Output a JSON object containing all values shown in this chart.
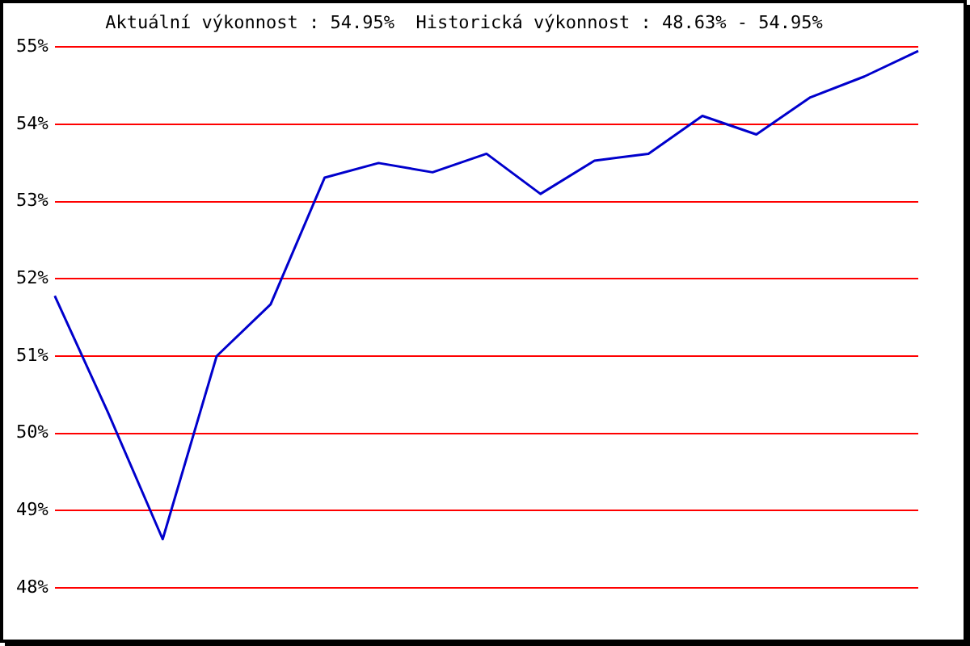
{
  "chart_data": {
    "type": "line",
    "title": "Aktuální výkonnost : 54.95%  Historická výkonnost : 48.63% - 54.95%",
    "categories": [
      null,
      null,
      null,
      null,
      null,
      null,
      null,
      null,
      null,
      null,
      null,
      null,
      null,
      null,
      null,
      null,
      null
    ],
    "series": [
      {
        "color": "#0000cc",
        "values": [
          51.78,
          50.25,
          48.63,
          51.0,
          51.67,
          53.31,
          53.5,
          53.38,
          53.62,
          53.1,
          53.53,
          53.62,
          54.11,
          53.87,
          54.35,
          54.62,
          54.95
        ]
      }
    ],
    "ylim": [
      48,
      55
    ],
    "yticks": [
      {
        "value": 48,
        "label": "48%"
      },
      {
        "value": 49,
        "label": "49%"
      },
      {
        "value": 50,
        "label": "50%"
      },
      {
        "value": 51,
        "label": "51%"
      },
      {
        "value": 52,
        "label": "52%"
      },
      {
        "value": 53,
        "label": "53%"
      },
      {
        "value": 54,
        "label": "54%"
      },
      {
        "value": 55,
        "label": "55%"
      }
    ],
    "grid": "y",
    "tick_labels": "y",
    "marker": "none",
    "line_style": "solid",
    "legend": false
  }
}
